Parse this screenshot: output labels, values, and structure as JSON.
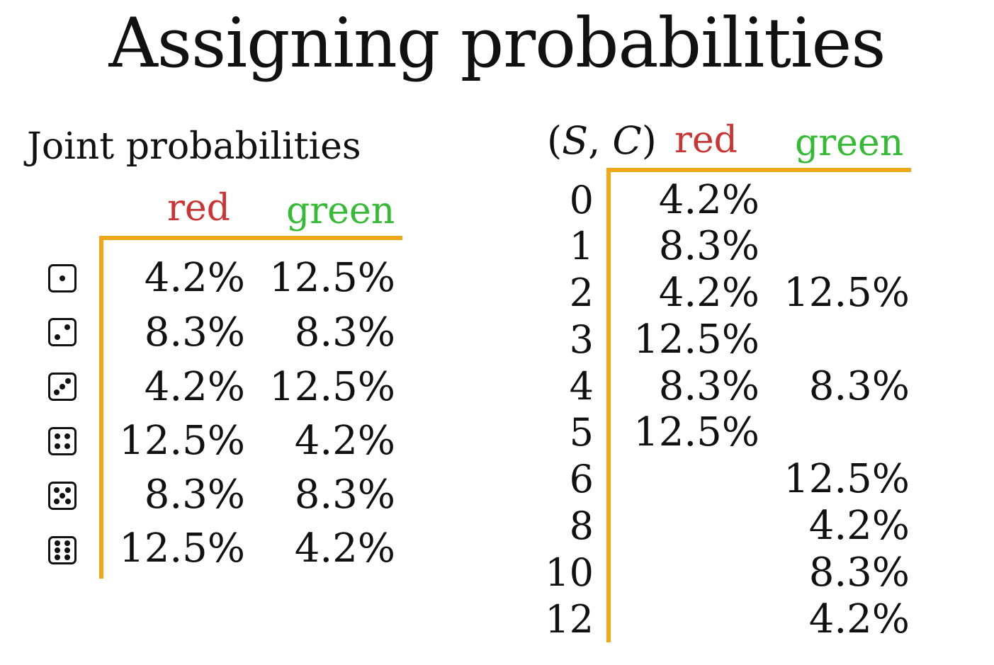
{
  "title": "Assigning probabilities",
  "left_table": {
    "subtitle": "Joint probabilities",
    "col_red": "red",
    "col_green": "green",
    "colors": {
      "red": "#cc3333",
      "green": "#33bb33",
      "rule": "#f0a81a"
    },
    "rows": [
      {
        "die_face": 1,
        "red": "4.2%",
        "green": "12.5%"
      },
      {
        "die_face": 2,
        "red": "8.3%",
        "green": "8.3%"
      },
      {
        "die_face": 3,
        "red": "4.2%",
        "green": "12.5%"
      },
      {
        "die_face": 4,
        "red": "12.5%",
        "green": "4.2%"
      },
      {
        "die_face": 5,
        "red": "8.3%",
        "green": "8.3%"
      },
      {
        "die_face": 6,
        "red": "12.5%",
        "green": "4.2%"
      }
    ]
  },
  "right_table": {
    "header_open": "(",
    "header_s": "S",
    "header_comma": ", ",
    "header_c": "C",
    "header_close": ")",
    "col_red": "red",
    "col_green": "green",
    "rows": [
      {
        "sum": "0",
        "red": "4.2%",
        "green": ""
      },
      {
        "sum": "1",
        "red": "8.3%",
        "green": ""
      },
      {
        "sum": "2",
        "red": "4.2%",
        "green": "12.5%"
      },
      {
        "sum": "3",
        "red": "12.5%",
        "green": ""
      },
      {
        "sum": "4",
        "red": "8.3%",
        "green": "8.3%"
      },
      {
        "sum": "5",
        "red": "12.5%",
        "green": ""
      },
      {
        "sum": "6",
        "red": "",
        "green": "12.5%"
      },
      {
        "sum": "8",
        "red": "",
        "green": "4.2%"
      },
      {
        "sum": "10",
        "red": "",
        "green": "8.3%"
      },
      {
        "sum": "12",
        "red": "",
        "green": "4.2%"
      }
    ]
  }
}
